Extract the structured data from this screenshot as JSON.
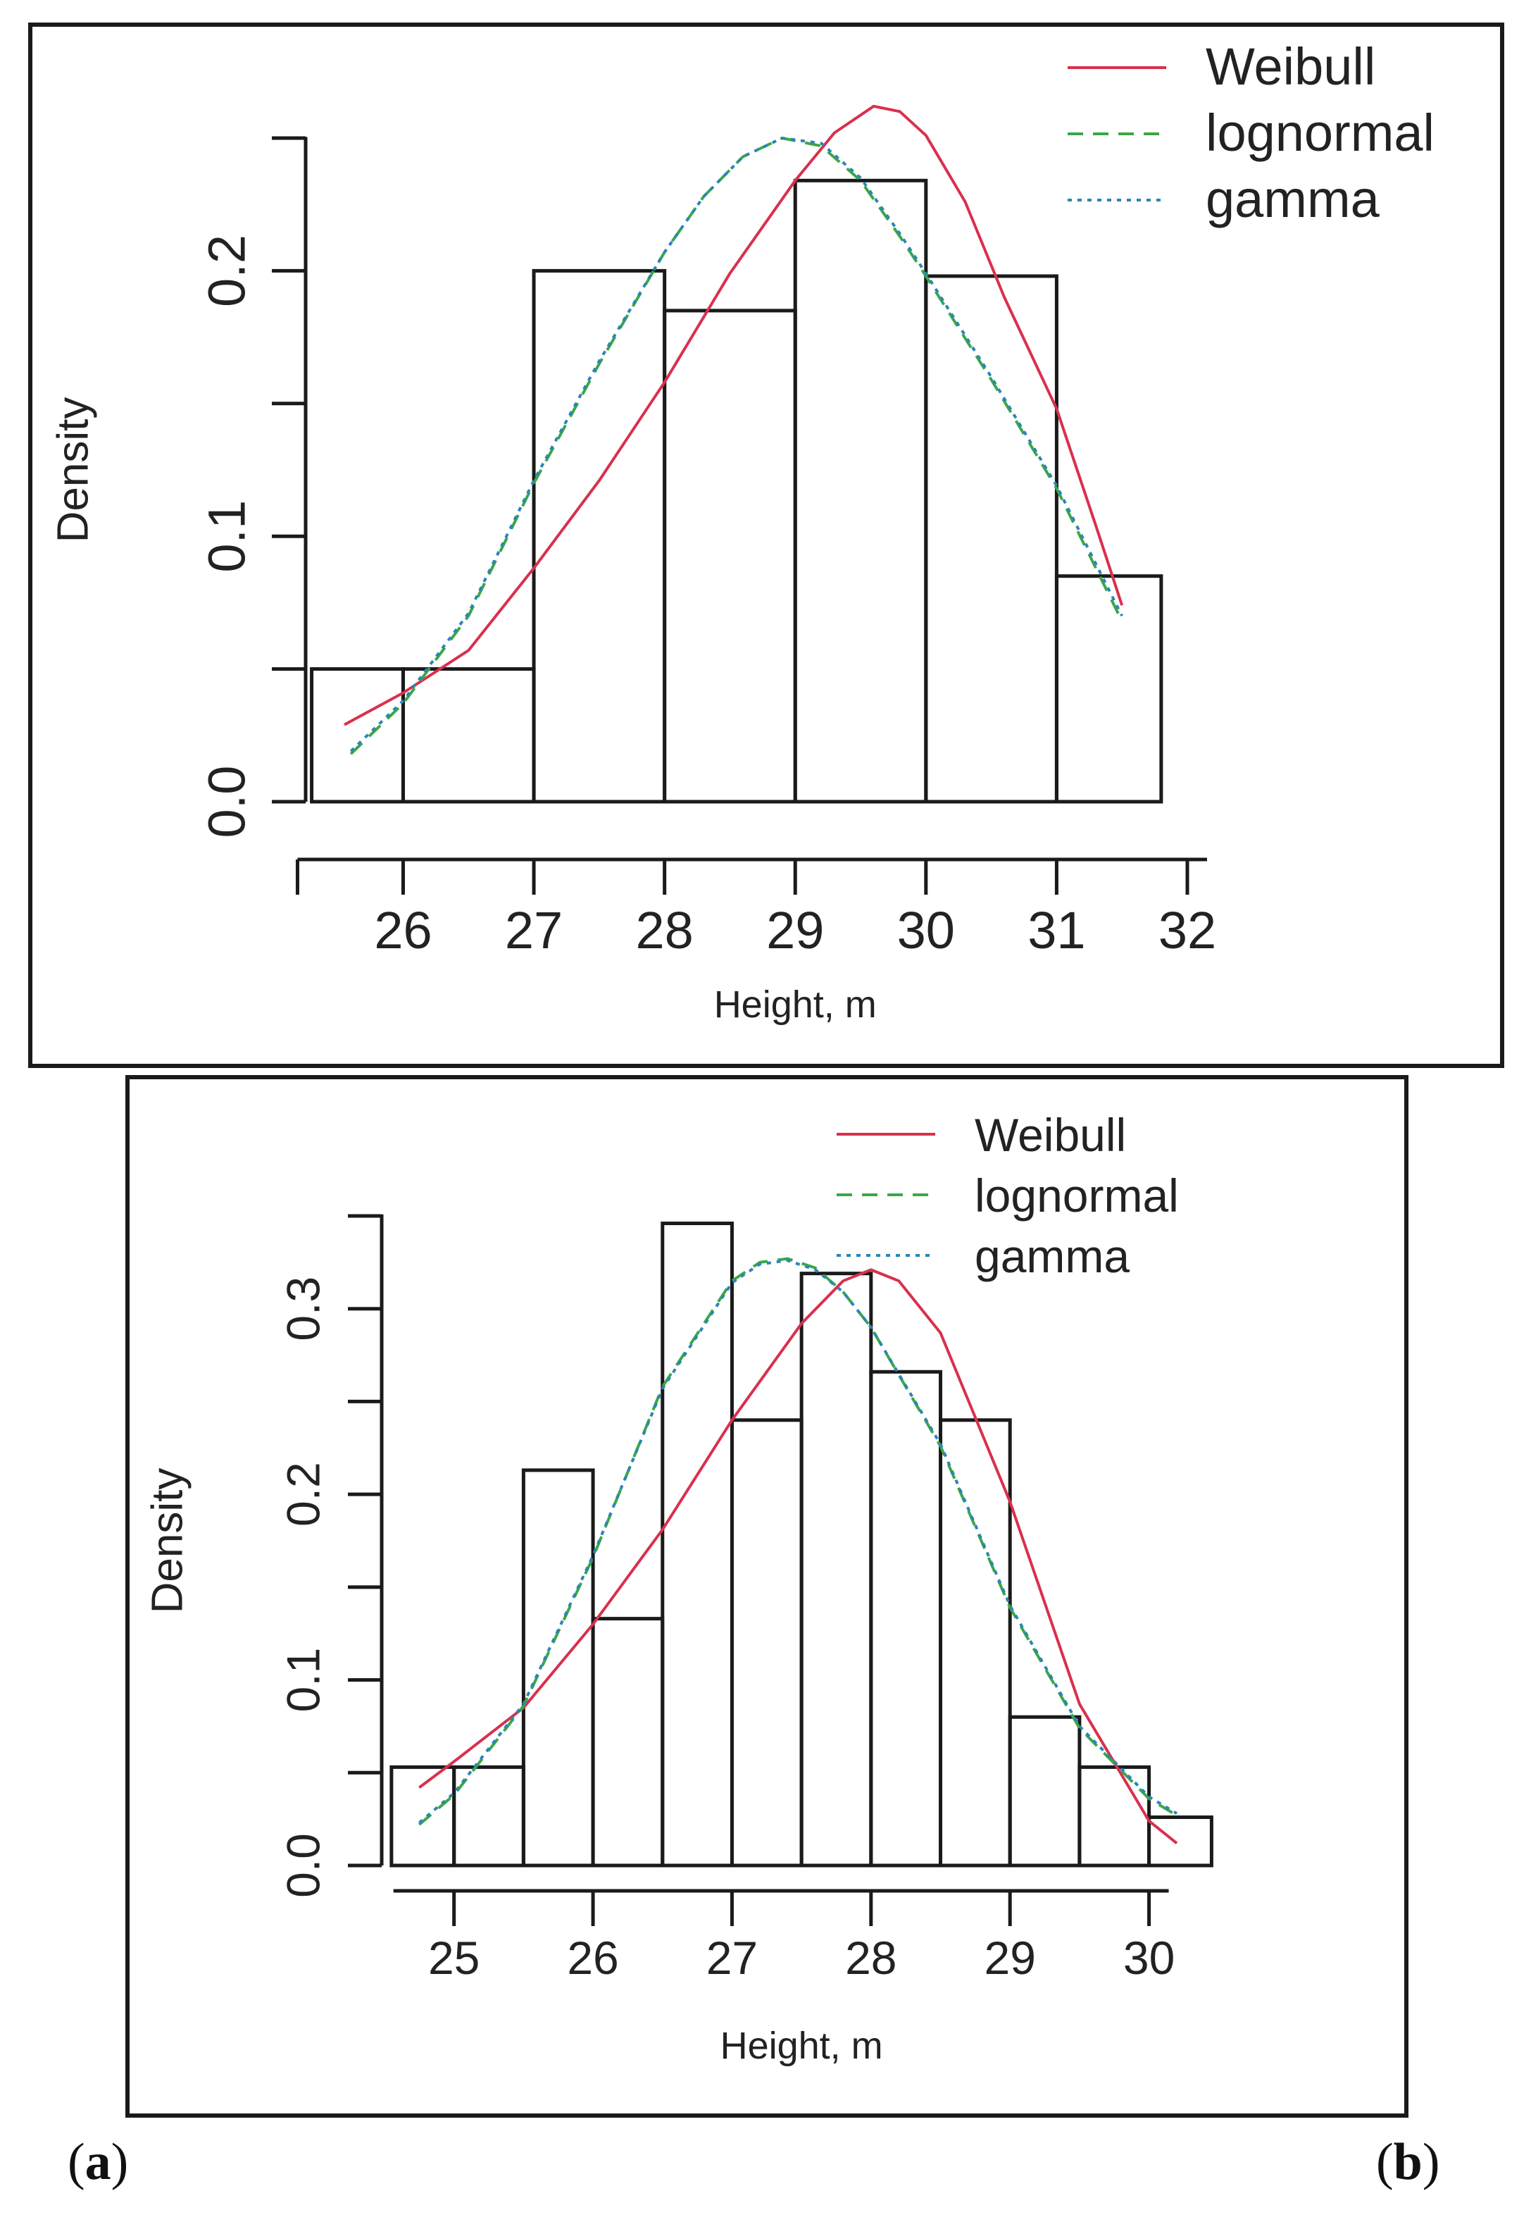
{
  "captions": {
    "a": "a",
    "b": "b"
  },
  "colors": {
    "weibull": "#d9304e",
    "lognormal": "#3aa845",
    "gamma": "#2b86b5",
    "bars": "#1a1a1a"
  },
  "chart_data": [
    {
      "panel": "a",
      "type": "bar",
      "subtype": "histogram with fitted density curves",
      "xlabel": "Height, m",
      "ylabel": "Density",
      "x_ticks": [
        26,
        27,
        28,
        29,
        30,
        31,
        32
      ],
      "y_ticks": [
        0.0,
        0.1,
        0.2
      ],
      "y_tick_labels": [
        "0.0",
        "0.1",
        "0.2"
      ],
      "xlim": [
        25.2,
        32
      ],
      "ylim": [
        0,
        0.25
      ],
      "grid": false,
      "legend_position": "top-right",
      "bins": [
        {
          "x0": 25.3,
          "x1": 26.0,
          "density": 0.05
        },
        {
          "x0": 26.0,
          "x1": 27.0,
          "density": 0.05
        },
        {
          "x0": 27.0,
          "x1": 28.0,
          "density": 0.2
        },
        {
          "x0": 28.0,
          "x1": 29.0,
          "density": 0.185
        },
        {
          "x0": 29.0,
          "x1": 30.0,
          "density": 0.234
        },
        {
          "x0": 30.0,
          "x1": 31.0,
          "density": 0.198
        },
        {
          "x0": 31.0,
          "x1": 31.8,
          "density": 0.085
        }
      ],
      "series": [
        {
          "name": "Weibull",
          "style": "solid",
          "x": [
            25.55,
            26.0,
            26.5,
            27.0,
            27.5,
            28.0,
            28.5,
            29.0,
            29.3,
            29.6,
            29.8,
            30.0,
            30.3,
            30.6,
            31.0,
            31.3,
            31.5
          ],
          "y": [
            0.029,
            0.041,
            0.057,
            0.088,
            0.121,
            0.158,
            0.199,
            0.234,
            0.252,
            0.262,
            0.26,
            0.251,
            0.226,
            0.19,
            0.148,
            0.104,
            0.074
          ]
        },
        {
          "name": "lognormal",
          "style": "dashed",
          "x": [
            25.6,
            26.0,
            26.5,
            27.0,
            27.5,
            28.0,
            28.3,
            28.6,
            28.9,
            29.2,
            29.5,
            29.8,
            30.0,
            30.5,
            31.0,
            31.5
          ],
          "y": [
            0.018,
            0.037,
            0.07,
            0.12,
            0.165,
            0.207,
            0.228,
            0.243,
            0.25,
            0.247,
            0.234,
            0.213,
            0.198,
            0.159,
            0.118,
            0.068
          ]
        },
        {
          "name": "gamma",
          "style": "dotted",
          "x": [
            25.6,
            26.0,
            26.5,
            27.0,
            27.5,
            28.0,
            28.3,
            28.6,
            28.9,
            29.2,
            29.5,
            29.8,
            30.0,
            30.5,
            31.0,
            31.5
          ],
          "y": [
            0.019,
            0.038,
            0.071,
            0.121,
            0.166,
            0.207,
            0.228,
            0.243,
            0.25,
            0.248,
            0.235,
            0.214,
            0.199,
            0.16,
            0.119,
            0.07
          ]
        }
      ]
    },
    {
      "panel": "b",
      "type": "bar",
      "subtype": "histogram with fitted density curves",
      "xlabel": "Height, m",
      "ylabel": "Density",
      "x_ticks": [
        25,
        26,
        27,
        28,
        29,
        30
      ],
      "y_ticks": [
        0.0,
        0.1,
        0.2,
        0.3
      ],
      "y_tick_labels": [
        "0.0",
        "0.1",
        "0.2",
        "0.3"
      ],
      "xlim": [
        24.5,
        30.6
      ],
      "ylim": [
        0,
        0.35
      ],
      "grid": false,
      "legend_position": "top-right",
      "bins": [
        {
          "x0": 24.55,
          "x1": 25.0,
          "density": 0.053
        },
        {
          "x0": 25.0,
          "x1": 25.5,
          "density": 0.053
        },
        {
          "x0": 25.5,
          "x1": 26.0,
          "density": 0.213
        },
        {
          "x0": 26.0,
          "x1": 26.5,
          "density": 0.133
        },
        {
          "x0": 26.5,
          "x1": 27.0,
          "density": 0.346
        },
        {
          "x0": 27.0,
          "x1": 27.5,
          "density": 0.24
        },
        {
          "x0": 27.5,
          "x1": 28.0,
          "density": 0.319
        },
        {
          "x0": 28.0,
          "x1": 28.5,
          "density": 0.266
        },
        {
          "x0": 28.5,
          "x1": 29.0,
          "density": 0.24
        },
        {
          "x0": 29.0,
          "x1": 29.5,
          "density": 0.08
        },
        {
          "x0": 29.5,
          "x1": 30.0,
          "density": 0.053
        },
        {
          "x0": 30.0,
          "x1": 30.45,
          "density": 0.026
        }
      ],
      "series": [
        {
          "name": "Weibull",
          "style": "solid",
          "x": [
            24.75,
            25.0,
            25.5,
            26.0,
            26.5,
            27.0,
            27.5,
            27.8,
            28.0,
            28.2,
            28.5,
            29.0,
            29.5,
            30.0,
            30.2
          ],
          "y": [
            0.042,
            0.056,
            0.085,
            0.13,
            0.181,
            0.24,
            0.292,
            0.315,
            0.321,
            0.315,
            0.287,
            0.196,
            0.087,
            0.024,
            0.012
          ]
        },
        {
          "name": "lognormal",
          "style": "dashed",
          "x": [
            24.75,
            25.0,
            25.5,
            26.0,
            26.5,
            27.0,
            27.2,
            27.4,
            27.6,
            27.8,
            28.0,
            28.5,
            29.0,
            29.5,
            30.0,
            30.2
          ],
          "y": [
            0.022,
            0.038,
            0.086,
            0.166,
            0.258,
            0.315,
            0.325,
            0.327,
            0.322,
            0.309,
            0.29,
            0.226,
            0.139,
            0.074,
            0.036,
            0.027
          ]
        },
        {
          "name": "gamma",
          "style": "dotted",
          "x": [
            24.75,
            25.0,
            25.5,
            26.0,
            26.5,
            27.0,
            27.2,
            27.4,
            27.6,
            27.8,
            28.0,
            28.5,
            29.0,
            29.5,
            30.0,
            30.2
          ],
          "y": [
            0.023,
            0.039,
            0.087,
            0.167,
            0.257,
            0.314,
            0.324,
            0.326,
            0.321,
            0.309,
            0.29,
            0.227,
            0.14,
            0.075,
            0.037,
            0.028
          ]
        }
      ]
    }
  ]
}
